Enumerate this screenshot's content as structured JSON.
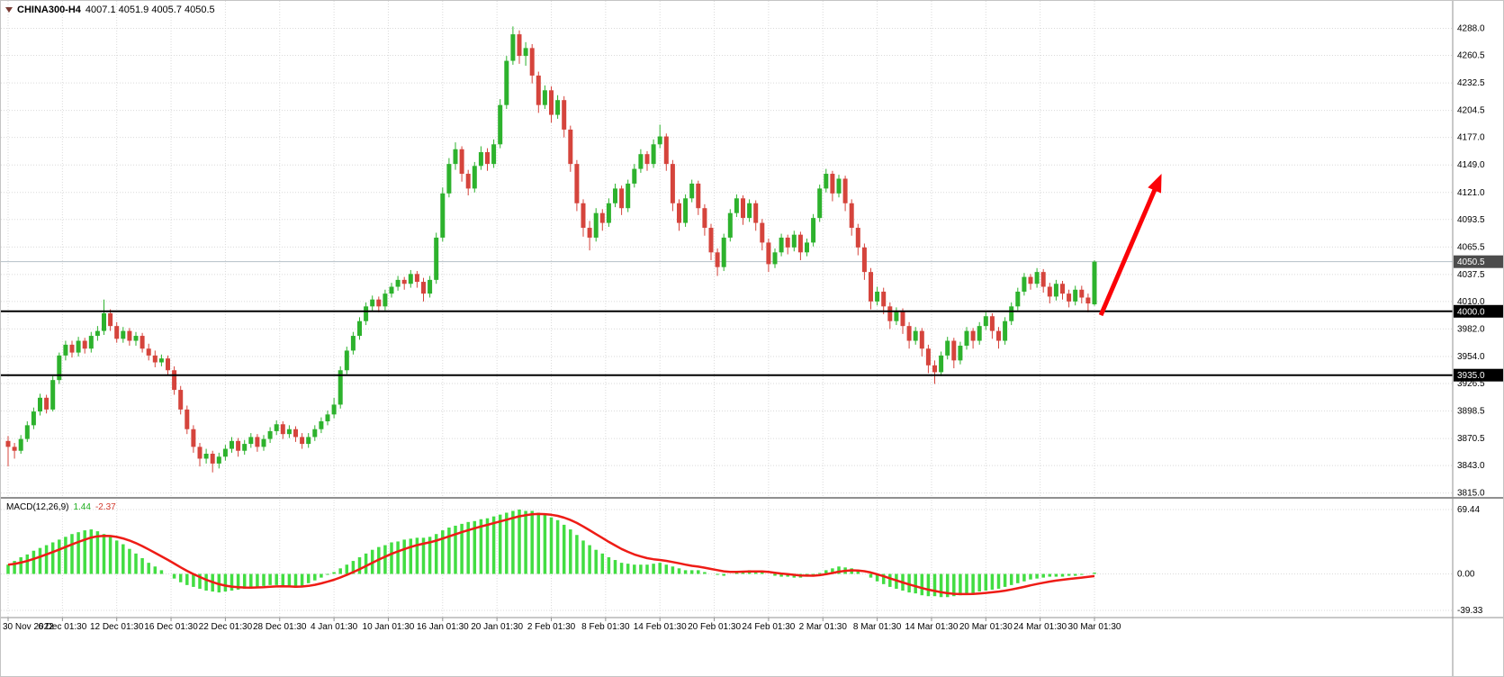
{
  "header": {
    "symbol_period": "CHINA300-H4",
    "ohlc": "4007.1 4051.9 4005.7 4050.5"
  },
  "indicator": {
    "label": "MACD(12,26,9)",
    "main_value": "1.44",
    "signal_value": "-2.37"
  },
  "price_axis": {
    "current_price": "4050.5"
  },
  "objects": {
    "hlines": [
      {
        "price": 4000.0,
        "label": "4000.0"
      },
      {
        "price": 3935.0,
        "label": "3935.0"
      }
    ],
    "arrow": {
      "from_bar": 171,
      "from_price": 3996,
      "to_bar": 180.5,
      "to_price": 4140
    }
  },
  "colors": {
    "bull": "#2db22d",
    "bear": "#d5443c",
    "macd_hist": "#42dd42",
    "macd_signal": "#ee1c16",
    "trendline": "#000000",
    "arrow": "#fb0207",
    "grid": "#dadada",
    "axis_text": "#000000",
    "current_badge_bg": "#4c4c4c",
    "hline_badge_bg": "#000000",
    "panel_border": "#909090",
    "current_line": "#b4c0c8"
  },
  "chart_data": [
    {
      "type": "candlestick",
      "title": "CHINA300-H4",
      "timeframe": "H4",
      "ylim": [
        3815.0,
        4288.0
      ],
      "y_ticks": [
        "4288.0",
        "4260.5",
        "4232.5",
        "4204.5",
        "4177.0",
        "4149.0",
        "4121.0",
        "4093.5",
        "4065.5",
        "4037.5",
        "4010.0",
        "3982.0",
        "3954.0",
        "3926.5",
        "3898.5",
        "3870.5",
        "3843.0",
        "3815.0"
      ],
      "x_labels": [
        "30 Nov 2022",
        "6 Dec 01:30",
        "12 Dec 01:30",
        "16 Dec 01:30",
        "22 Dec 01:30",
        "28 Dec 01:30",
        "4 Jan 01:30",
        "10 Jan 01:30",
        "16 Jan 01:30",
        "20 Jan 01:30",
        "2 Feb 01:30",
        "8 Feb 01:30",
        "14 Feb 01:30",
        "20 Feb 01:30",
        "24 Feb 01:30",
        "2 Mar 01:30",
        "8 Mar 01:30",
        "14 Mar 01:30",
        "20 Mar 01:30",
        "24 Mar 01:30",
        "30 Mar 01:30"
      ],
      "ohlc": [
        [
          3868,
          3873,
          3842,
          3862
        ],
        [
          3862,
          3866,
          3850,
          3858
        ],
        [
          3858,
          3874,
          3855,
          3870
        ],
        [
          3870,
          3888,
          3867,
          3884
        ],
        [
          3884,
          3902,
          3880,
          3898
        ],
        [
          3898,
          3916,
          3894,
          3912
        ],
        [
          3912,
          3915,
          3896,
          3900
        ],
        [
          3900,
          3934,
          3898,
          3930
        ],
        [
          3930,
          3958,
          3926,
          3955
        ],
        [
          3955,
          3970,
          3950,
          3966
        ],
        [
          3966,
          3970,
          3953,
          3958
        ],
        [
          3958,
          3974,
          3954,
          3970
        ],
        [
          3970,
          3973,
          3957,
          3962
        ],
        [
          3962,
          3979,
          3958,
          3975
        ],
        [
          3975,
          3985,
          3970,
          3980
        ],
        [
          3980,
          4012,
          3976,
          3998
        ],
        [
          3998,
          4002,
          3980,
          3985
        ],
        [
          3985,
          3989,
          3968,
          3972
        ],
        [
          3972,
          3984,
          3968,
          3980
        ],
        [
          3980,
          3983,
          3965,
          3970
        ],
        [
          3970,
          3979,
          3965,
          3975
        ],
        [
          3975,
          3978,
          3958,
          3962
        ],
        [
          3962,
          3967,
          3950,
          3955
        ],
        [
          3955,
          3960,
          3943,
          3948
        ],
        [
          3948,
          3956,
          3944,
          3952
        ],
        [
          3952,
          3955,
          3935,
          3940
        ],
        [
          3940,
          3944,
          3915,
          3920
        ],
        [
          3920,
          3924,
          3895,
          3900
        ],
        [
          3900,
          3904,
          3875,
          3880
        ],
        [
          3880,
          3884,
          3856,
          3862
        ],
        [
          3862,
          3866,
          3842,
          3850
        ],
        [
          3850,
          3860,
          3845,
          3855
        ],
        [
          3855,
          3858,
          3836,
          3845
        ],
        [
          3845,
          3856,
          3840,
          3852
        ],
        [
          3852,
          3864,
          3848,
          3860
        ],
        [
          3860,
          3872,
          3856,
          3868
        ],
        [
          3868,
          3871,
          3852,
          3858
        ],
        [
          3858,
          3869,
          3854,
          3865
        ],
        [
          3865,
          3876,
          3861,
          3872
        ],
        [
          3872,
          3875,
          3857,
          3862
        ],
        [
          3862,
          3874,
          3858,
          3870
        ],
        [
          3870,
          3882,
          3866,
          3878
        ],
        [
          3878,
          3889,
          3874,
          3885
        ],
        [
          3885,
          3888,
          3870,
          3875
        ],
        [
          3875,
          3884,
          3871,
          3880
        ],
        [
          3880,
          3883,
          3867,
          3872
        ],
        [
          3872,
          3876,
          3860,
          3865
        ],
        [
          3865,
          3876,
          3861,
          3872
        ],
        [
          3872,
          3884,
          3868,
          3880
        ],
        [
          3880,
          3892,
          3876,
          3888
        ],
        [
          3888,
          3899,
          3884,
          3895
        ],
        [
          3895,
          3912,
          3891,
          3905
        ],
        [
          3905,
          3944,
          3901,
          3940
        ],
        [
          3940,
          3964,
          3936,
          3960
        ],
        [
          3960,
          3979,
          3956,
          3975
        ],
        [
          3975,
          3994,
          3971,
          3990
        ],
        [
          3990,
          4009,
          3986,
          4005
        ],
        [
          4005,
          4016,
          4000,
          4012
        ],
        [
          4012,
          4015,
          3999,
          4005
        ],
        [
          4005,
          4022,
          4001,
          4018
        ],
        [
          4018,
          4029,
          4014,
          4025
        ],
        [
          4025,
          4036,
          4021,
          4032
        ],
        [
          4032,
          4035,
          4022,
          4028
        ],
        [
          4028,
          4042,
          4024,
          4038
        ],
        [
          4038,
          4041,
          4024,
          4030
        ],
        [
          4030,
          4034,
          4010,
          4018
        ],
        [
          4018,
          4036,
          4014,
          4032
        ],
        [
          4032,
          4080,
          4028,
          4075
        ],
        [
          4075,
          4126,
          4071,
          4120
        ],
        [
          4120,
          4156,
          4116,
          4150
        ],
        [
          4150,
          4172,
          4144,
          4165
        ],
        [
          4165,
          4168,
          4132,
          4140
        ],
        [
          4140,
          4144,
          4118,
          4125
        ],
        [
          4125,
          4152,
          4121,
          4148
        ],
        [
          4148,
          4168,
          4144,
          4162
        ],
        [
          4162,
          4166,
          4143,
          4150
        ],
        [
          4150,
          4175,
          4146,
          4170
        ],
        [
          4170,
          4216,
          4166,
          4210
        ],
        [
          4210,
          4260,
          4206,
          4255
        ],
        [
          4255,
          4290,
          4251,
          4282
        ],
        [
          4282,
          4286,
          4252,
          4260
        ],
        [
          4260,
          4274,
          4250,
          4268
        ],
        [
          4268,
          4272,
          4232,
          4240
        ],
        [
          4240,
          4244,
          4202,
          4210
        ],
        [
          4210,
          4230,
          4206,
          4225
        ],
        [
          4225,
          4229,
          4192,
          4200
        ],
        [
          4200,
          4220,
          4196,
          4215
        ],
        [
          4215,
          4219,
          4177,
          4185
        ],
        [
          4185,
          4189,
          4142,
          4150
        ],
        [
          4150,
          4154,
          4102,
          4110
        ],
        [
          4110,
          4114,
          4076,
          4085
        ],
        [
          4085,
          4092,
          4062,
          4075
        ],
        [
          4075,
          4105,
          4071,
          4100
        ],
        [
          4100,
          4104,
          4082,
          4090
        ],
        [
          4090,
          4115,
          4086,
          4110
        ],
        [
          4110,
          4130,
          4106,
          4125
        ],
        [
          4125,
          4128,
          4098,
          4105
        ],
        [
          4105,
          4134,
          4101,
          4130
        ],
        [
          4130,
          4150,
          4126,
          4145
        ],
        [
          4145,
          4165,
          4141,
          4160
        ],
        [
          4160,
          4163,
          4143,
          4150
        ],
        [
          4150,
          4175,
          4146,
          4170
        ],
        [
          4170,
          4190,
          4166,
          4178
        ],
        [
          4178,
          4181,
          4143,
          4150
        ],
        [
          4150,
          4154,
          4102,
          4110
        ],
        [
          4110,
          4114,
          4082,
          4090
        ],
        [
          4090,
          4119,
          4086,
          4115
        ],
        [
          4115,
          4134,
          4111,
          4130
        ],
        [
          4130,
          4133,
          4098,
          4105
        ],
        [
          4105,
          4109,
          4077,
          4085
        ],
        [
          4085,
          4089,
          4052,
          4060
        ],
        [
          4060,
          4064,
          4036,
          4045
        ],
        [
          4045,
          4079,
          4041,
          4075
        ],
        [
          4075,
          4104,
          4071,
          4100
        ],
        [
          4100,
          4119,
          4096,
          4115
        ],
        [
          4115,
          4118,
          4088,
          4095
        ],
        [
          4095,
          4114,
          4091,
          4110
        ],
        [
          4110,
          4113,
          4082,
          4090
        ],
        [
          4090,
          4094,
          4062,
          4070
        ],
        [
          4070,
          4074,
          4040,
          4048
        ],
        [
          4048,
          4064,
          4044,
          4060
        ],
        [
          4060,
          4079,
          4056,
          4075
        ],
        [
          4075,
          4078,
          4058,
          4065
        ],
        [
          4065,
          4082,
          4061,
          4078
        ],
        [
          4078,
          4081,
          4052,
          4060
        ],
        [
          4060,
          4074,
          4056,
          4070
        ],
        [
          4070,
          4099,
          4066,
          4095
        ],
        [
          4095,
          4129,
          4091,
          4125
        ],
        [
          4125,
          4145,
          4121,
          4140
        ],
        [
          4140,
          4143,
          4112,
          4120
        ],
        [
          4120,
          4139,
          4116,
          4135
        ],
        [
          4135,
          4138,
          4102,
          4110
        ],
        [
          4110,
          4114,
          4077,
          4085
        ],
        [
          4085,
          4089,
          4057,
          4065
        ],
        [
          4065,
          4069,
          4032,
          4040
        ],
        [
          4040,
          4044,
          4002,
          4010
        ],
        [
          4010,
          4025,
          4006,
          4020
        ],
        [
          4020,
          4024,
          3997,
          4005
        ],
        [
          4005,
          4009,
          3982,
          3990
        ],
        [
          3990,
          4004,
          3986,
          4000
        ],
        [
          4000,
          4003,
          3977,
          3985
        ],
        [
          3985,
          3989,
          3962,
          3970
        ],
        [
          3970,
          3984,
          3966,
          3980
        ],
        [
          3980,
          3983,
          3954,
          3962
        ],
        [
          3962,
          3966,
          3937,
          3945
        ],
        [
          3945,
          3950,
          3926,
          3938
        ],
        [
          3938,
          3959,
          3934,
          3955
        ],
        [
          3955,
          3974,
          3951,
          3970
        ],
        [
          3970,
          3973,
          3942,
          3950
        ],
        [
          3950,
          3969,
          3946,
          3965
        ],
        [
          3965,
          3984,
          3961,
          3980
        ],
        [
          3980,
          3983,
          3962,
          3970
        ],
        [
          3970,
          3989,
          3966,
          3985
        ],
        [
          3985,
          3999,
          3981,
          3995
        ],
        [
          3995,
          3998,
          3972,
          3980
        ],
        [
          3980,
          3984,
          3962,
          3970
        ],
        [
          3970,
          3994,
          3966,
          3990
        ],
        [
          3990,
          4009,
          3986,
          4005
        ],
        [
          4005,
          4024,
          4001,
          4020
        ],
        [
          4020,
          4039,
          4016,
          4035
        ],
        [
          4035,
          4038,
          4022,
          4028
        ],
        [
          4028,
          4044,
          4024,
          4040
        ],
        [
          4040,
          4043,
          4019,
          4025
        ],
        [
          4025,
          4029,
          4008,
          4015
        ],
        [
          4015,
          4032,
          4011,
          4028
        ],
        [
          4028,
          4031,
          4012,
          4018
        ],
        [
          4018,
          4022,
          4004,
          4010
        ],
        [
          4010,
          4026,
          4006,
          4022
        ],
        [
          4022,
          4026,
          4008,
          4014
        ],
        [
          4014,
          4018,
          3999,
          4008
        ],
        [
          4007.1,
          4051.9,
          4005.7,
          4050.5
        ]
      ]
    },
    {
      "type": "bar",
      "name": "MACD(12,26,9)",
      "ylim": [
        -39.33,
        69.44
      ],
      "y_ticks": [
        "69.44",
        "0.00",
        "-39.33"
      ],
      "current": {
        "macd": 1.44,
        "signal": -2.37
      },
      "signal_rule": "EMA(9) of values",
      "values": [
        10,
        14,
        18,
        21,
        25,
        28,
        31,
        34,
        37,
        40,
        43,
        45,
        47,
        48,
        46,
        43,
        40,
        36,
        32,
        27,
        22,
        17,
        12,
        8,
        4,
        0,
        -5,
        -9,
        -12,
        -14,
        -16,
        -18,
        -19,
        -20,
        -19,
        -18,
        -17,
        -16,
        -15,
        -14,
        -13,
        -12,
        -12,
        -13,
        -14,
        -15,
        -13,
        -10,
        -7,
        -4,
        -1,
        2,
        6,
        10,
        14,
        18,
        22,
        26,
        29,
        31,
        34,
        35,
        37,
        38,
        39,
        39,
        40,
        43,
        47,
        50,
        52,
        54,
        56,
        57,
        59,
        60,
        62,
        64,
        66,
        68,
        69.4,
        68,
        68,
        66,
        64,
        61,
        58,
        53,
        48,
        42,
        36,
        31,
        26,
        22,
        18,
        15,
        12,
        11,
        10,
        10,
        10,
        11,
        12,
        10,
        8,
        6,
        4,
        4,
        4,
        2,
        0,
        -1,
        -2,
        0,
        2,
        3,
        4,
        3,
        2,
        0,
        -2,
        -3,
        -3,
        -4,
        -4,
        -3,
        -2,
        1,
        4,
        6,
        8,
        7,
        6,
        3,
        0,
        -4,
        -8,
        -11,
        -14,
        -16,
        -18,
        -20,
        -21,
        -23,
        -24,
        -24,
        -25,
        -25,
        -24,
        -23,
        -22,
        -21,
        -19,
        -18,
        -17,
        -16,
        -14,
        -12,
        -10,
        -8,
        -6,
        -5,
        -4,
        -3,
        -3,
        -3,
        -2,
        -2,
        -1,
        0,
        1.44
      ]
    }
  ]
}
